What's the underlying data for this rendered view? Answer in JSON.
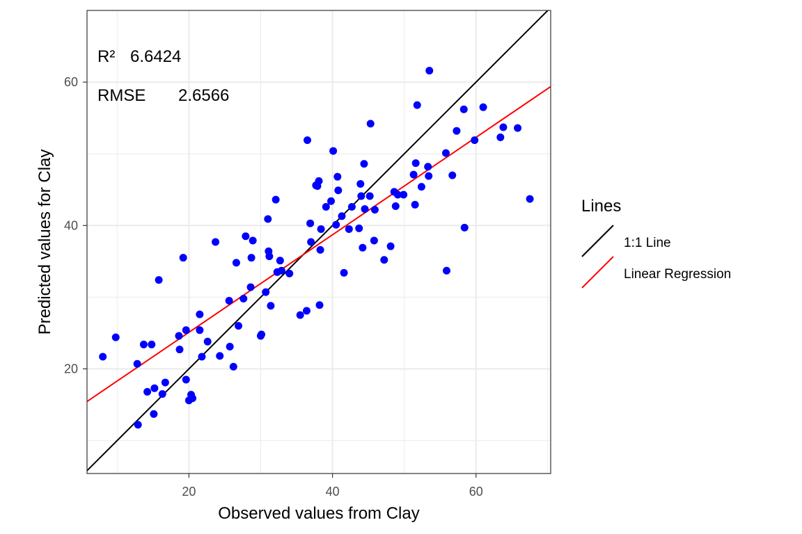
{
  "chart_data": {
    "type": "scatter",
    "title": "",
    "xlabel": "Observed values from Clay",
    "ylabel": "Predicted values for Clay",
    "xlim": [
      5.8,
      70.4
    ],
    "ylim": [
      5.4,
      70.0
    ],
    "x_ticks": [
      20,
      40,
      60
    ],
    "y_ticks": [
      20,
      40,
      60
    ],
    "grid": true,
    "point_color": "#0000ff",
    "annotations": {
      "r2_label": "R²",
      "r2_value": "6.6424",
      "rmse_label": "RMSE",
      "rmse_value": "2.6566"
    },
    "legend": {
      "title": "Lines",
      "position": "right",
      "entries": [
        {
          "label": "1:1 Line",
          "color": "#000000"
        },
        {
          "label": "Linear Regression",
          "color": "#ff0000"
        }
      ]
    },
    "lines": [
      {
        "name": "1:1 Line",
        "color": "#000000",
        "slope": 1.0,
        "intercept": 0.0
      },
      {
        "name": "Linear Regression",
        "color": "#ff0000",
        "slope": 0.68,
        "intercept": 11.5
      }
    ],
    "points": [
      [
        8.0,
        21.7
      ],
      [
        9.8,
        24.4
      ],
      [
        12.8,
        20.7
      ],
      [
        13.7,
        23.4
      ],
      [
        14.8,
        23.4
      ],
      [
        12.9,
        12.2
      ],
      [
        14.2,
        16.8
      ],
      [
        15.2,
        17.3
      ],
      [
        15.1,
        13.7
      ],
      [
        16.3,
        16.5
      ],
      [
        16.7,
        18.1
      ],
      [
        15.8,
        32.4
      ],
      [
        18.6,
        24.6
      ],
      [
        18.7,
        22.7
      ],
      [
        19.2,
        35.5
      ],
      [
        19.6,
        25.4
      ],
      [
        19.6,
        18.5
      ],
      [
        20.0,
        15.6
      ],
      [
        20.3,
        16.4
      ],
      [
        20.5,
        15.9
      ],
      [
        21.5,
        27.6
      ],
      [
        21.5,
        25.4
      ],
      [
        21.8,
        21.7
      ],
      [
        22.6,
        23.8
      ],
      [
        23.7,
        37.7
      ],
      [
        24.3,
        21.8
      ],
      [
        25.6,
        29.5
      ],
      [
        25.7,
        23.1
      ],
      [
        26.2,
        20.3
      ],
      [
        26.6,
        34.8
      ],
      [
        26.9,
        26.0
      ],
      [
        27.6,
        29.8
      ],
      [
        27.9,
        38.5
      ],
      [
        28.6,
        31.4
      ],
      [
        28.7,
        35.5
      ],
      [
        28.9,
        37.9
      ],
      [
        30.0,
        24.6
      ],
      [
        30.1,
        24.8
      ],
      [
        30.7,
        30.7
      ],
      [
        31.0,
        40.9
      ],
      [
        31.1,
        36.4
      ],
      [
        31.2,
        35.7
      ],
      [
        31.4,
        28.8
      ],
      [
        32.1,
        43.6
      ],
      [
        32.3,
        33.5
      ],
      [
        32.7,
        35.1
      ],
      [
        32.9,
        33.7
      ],
      [
        34.0,
        33.3
      ],
      [
        35.5,
        27.5
      ],
      [
        36.4,
        28.1
      ],
      [
        36.5,
        51.9
      ],
      [
        36.9,
        40.3
      ],
      [
        37.0,
        37.7
      ],
      [
        37.7,
        45.6
      ],
      [
        37.9,
        45.5
      ],
      [
        38.1,
        46.2
      ],
      [
        38.2,
        28.9
      ],
      [
        38.3,
        36.6
      ],
      [
        38.4,
        39.5
      ],
      [
        39.1,
        42.6
      ],
      [
        39.8,
        43.4
      ],
      [
        40.1,
        50.4
      ],
      [
        40.5,
        40.1
      ],
      [
        40.7,
        46.8
      ],
      [
        40.8,
        44.9
      ],
      [
        41.3,
        41.3
      ],
      [
        41.6,
        33.4
      ],
      [
        42.3,
        39.5
      ],
      [
        42.7,
        42.6
      ],
      [
        43.7,
        39.6
      ],
      [
        43.9,
        45.8
      ],
      [
        44.0,
        44.1
      ],
      [
        44.2,
        36.9
      ],
      [
        44.4,
        48.6
      ],
      [
        44.5,
        42.3
      ],
      [
        45.2,
        44.1
      ],
      [
        45.3,
        54.2
      ],
      [
        45.8,
        37.9
      ],
      [
        45.9,
        42.2
      ],
      [
        47.2,
        35.2
      ],
      [
        48.1,
        37.1
      ],
      [
        48.6,
        44.7
      ],
      [
        48.8,
        42.7
      ],
      [
        49.1,
        44.3
      ],
      [
        49.9,
        44.3
      ],
      [
        51.3,
        47.1
      ],
      [
        51.5,
        42.9
      ],
      [
        51.6,
        48.7
      ],
      [
        51.8,
        56.8
      ],
      [
        52.4,
        45.4
      ],
      [
        53.3,
        48.2
      ],
      [
        53.4,
        46.9
      ],
      [
        53.5,
        61.6
      ],
      [
        55.8,
        50.1
      ],
      [
        55.9,
        33.7
      ],
      [
        56.7,
        47.0
      ],
      [
        57.3,
        53.2
      ],
      [
        58.3,
        56.2
      ],
      [
        58.4,
        39.7
      ],
      [
        59.8,
        51.9
      ],
      [
        61.0,
        56.5
      ],
      [
        63.4,
        52.3
      ],
      [
        63.8,
        53.7
      ],
      [
        65.8,
        53.6
      ],
      [
        67.5,
        43.7
      ]
    ]
  }
}
